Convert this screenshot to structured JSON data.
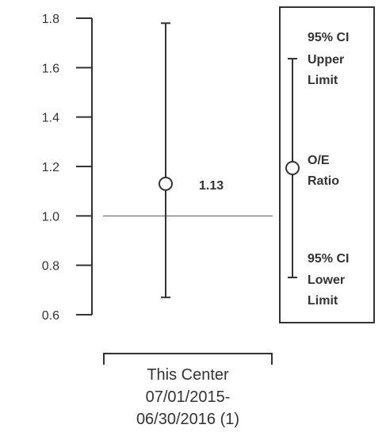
{
  "chart_data": {
    "type": "error-bar",
    "title": "",
    "xlabel": "",
    "ylabel": "",
    "ylim": [
      0.6,
      1.8
    ],
    "y_ticks": [
      "1.8",
      "1.6",
      "1.4",
      "1.2",
      "1.0",
      "0.8",
      "0.6"
    ],
    "reference_line": 1.0,
    "categories": [
      "This Center 07/01/2015-06/30/2016 (1)"
    ],
    "category_label_lines": [
      "This Center",
      "07/01/2015-",
      "06/30/2016 (1)"
    ],
    "points": [
      {
        "category": "This Center 07/01/2015-06/30/2016 (1)",
        "value": 1.13,
        "lower": 0.67,
        "upper": 1.78,
        "label": "1.13"
      }
    ],
    "legend": {
      "placement": "right",
      "upper_label_lines": [
        "95% CI",
        "Upper",
        "Limit"
      ],
      "ratio_label_lines": [
        "O/E",
        "Ratio"
      ],
      "lower_label_lines": [
        "95% CI",
        "Lower",
        "Limit"
      ]
    },
    "colors": {
      "line": "#333333",
      "reference": "#555555"
    }
  }
}
